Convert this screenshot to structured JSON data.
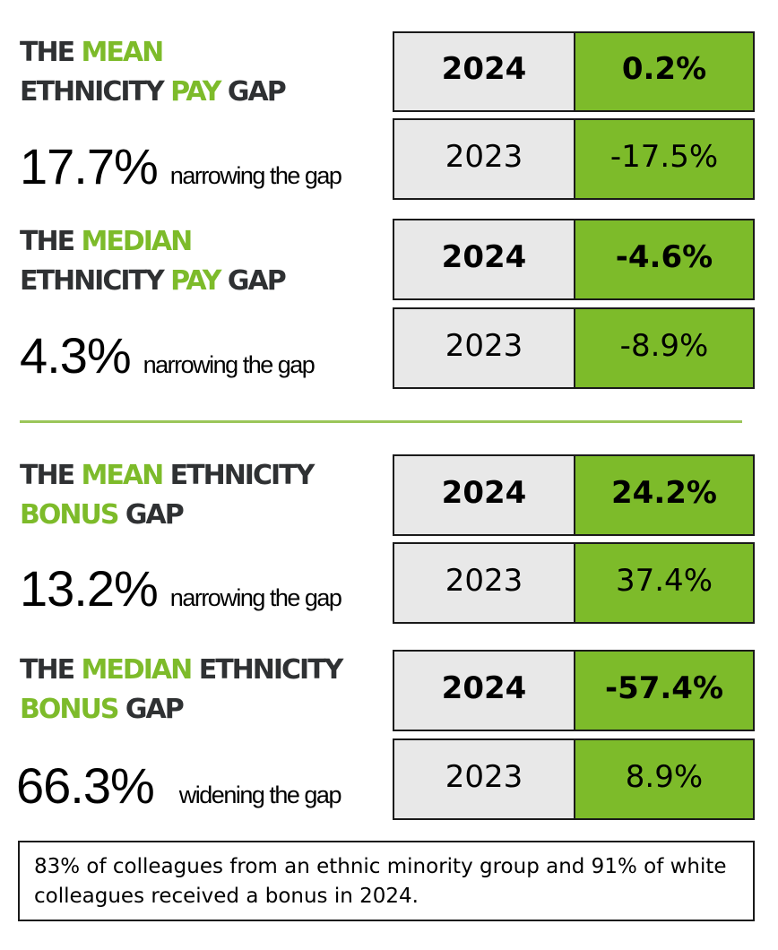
{
  "sections": [
    {
      "heading_parts": [
        "THE ",
        "MEAN",
        "",
        "ETHNICITY ",
        "PAY",
        " GAP"
      ],
      "big_number": "17.7%",
      "trend": "narrowing the gap",
      "rows": [
        {
          "year": "2024",
          "value": "0.2%"
        },
        {
          "year": "2023",
          "value": "-17.5%"
        }
      ]
    },
    {
      "heading_parts": [
        "THE ",
        "MEDIAN",
        "",
        "ETHNICITY ",
        "PAY",
        " GAP"
      ],
      "big_number": "4.3%",
      "trend": "narrowing the gap",
      "rows": [
        {
          "year": "2024",
          "value": "-4.6%"
        },
        {
          "year": "2023",
          "value": "-8.9%"
        }
      ]
    },
    {
      "heading_parts": [
        "THE ",
        "MEAN",
        " ETHNICITY",
        "",
        "BONUS",
        " GAP"
      ],
      "big_number": "13.2%",
      "trend": "narrowing the gap",
      "rows": [
        {
          "year": "2024",
          "value": "24.2%"
        },
        {
          "year": "2023",
          "value": "37.4%"
        }
      ]
    },
    {
      "heading_parts": [
        "THE ",
        "MEDIAN",
        " ETHNICITY",
        "",
        "BONUS",
        " GAP"
      ],
      "big_number": "66.3%",
      "trend": "widening the gap",
      "rows": [
        {
          "year": "2024",
          "value": "-57.4%"
        },
        {
          "year": "2023",
          "value": "8.9%"
        }
      ]
    }
  ],
  "note": "83% of colleagues from an ethnic minority group and 91% of white colleagues received a bonus in 2024.",
  "colors": {
    "accent_green": "#7dbb2a",
    "heading_dark": "#2f3133",
    "year_cell_grey": "#e8e8e8"
  }
}
